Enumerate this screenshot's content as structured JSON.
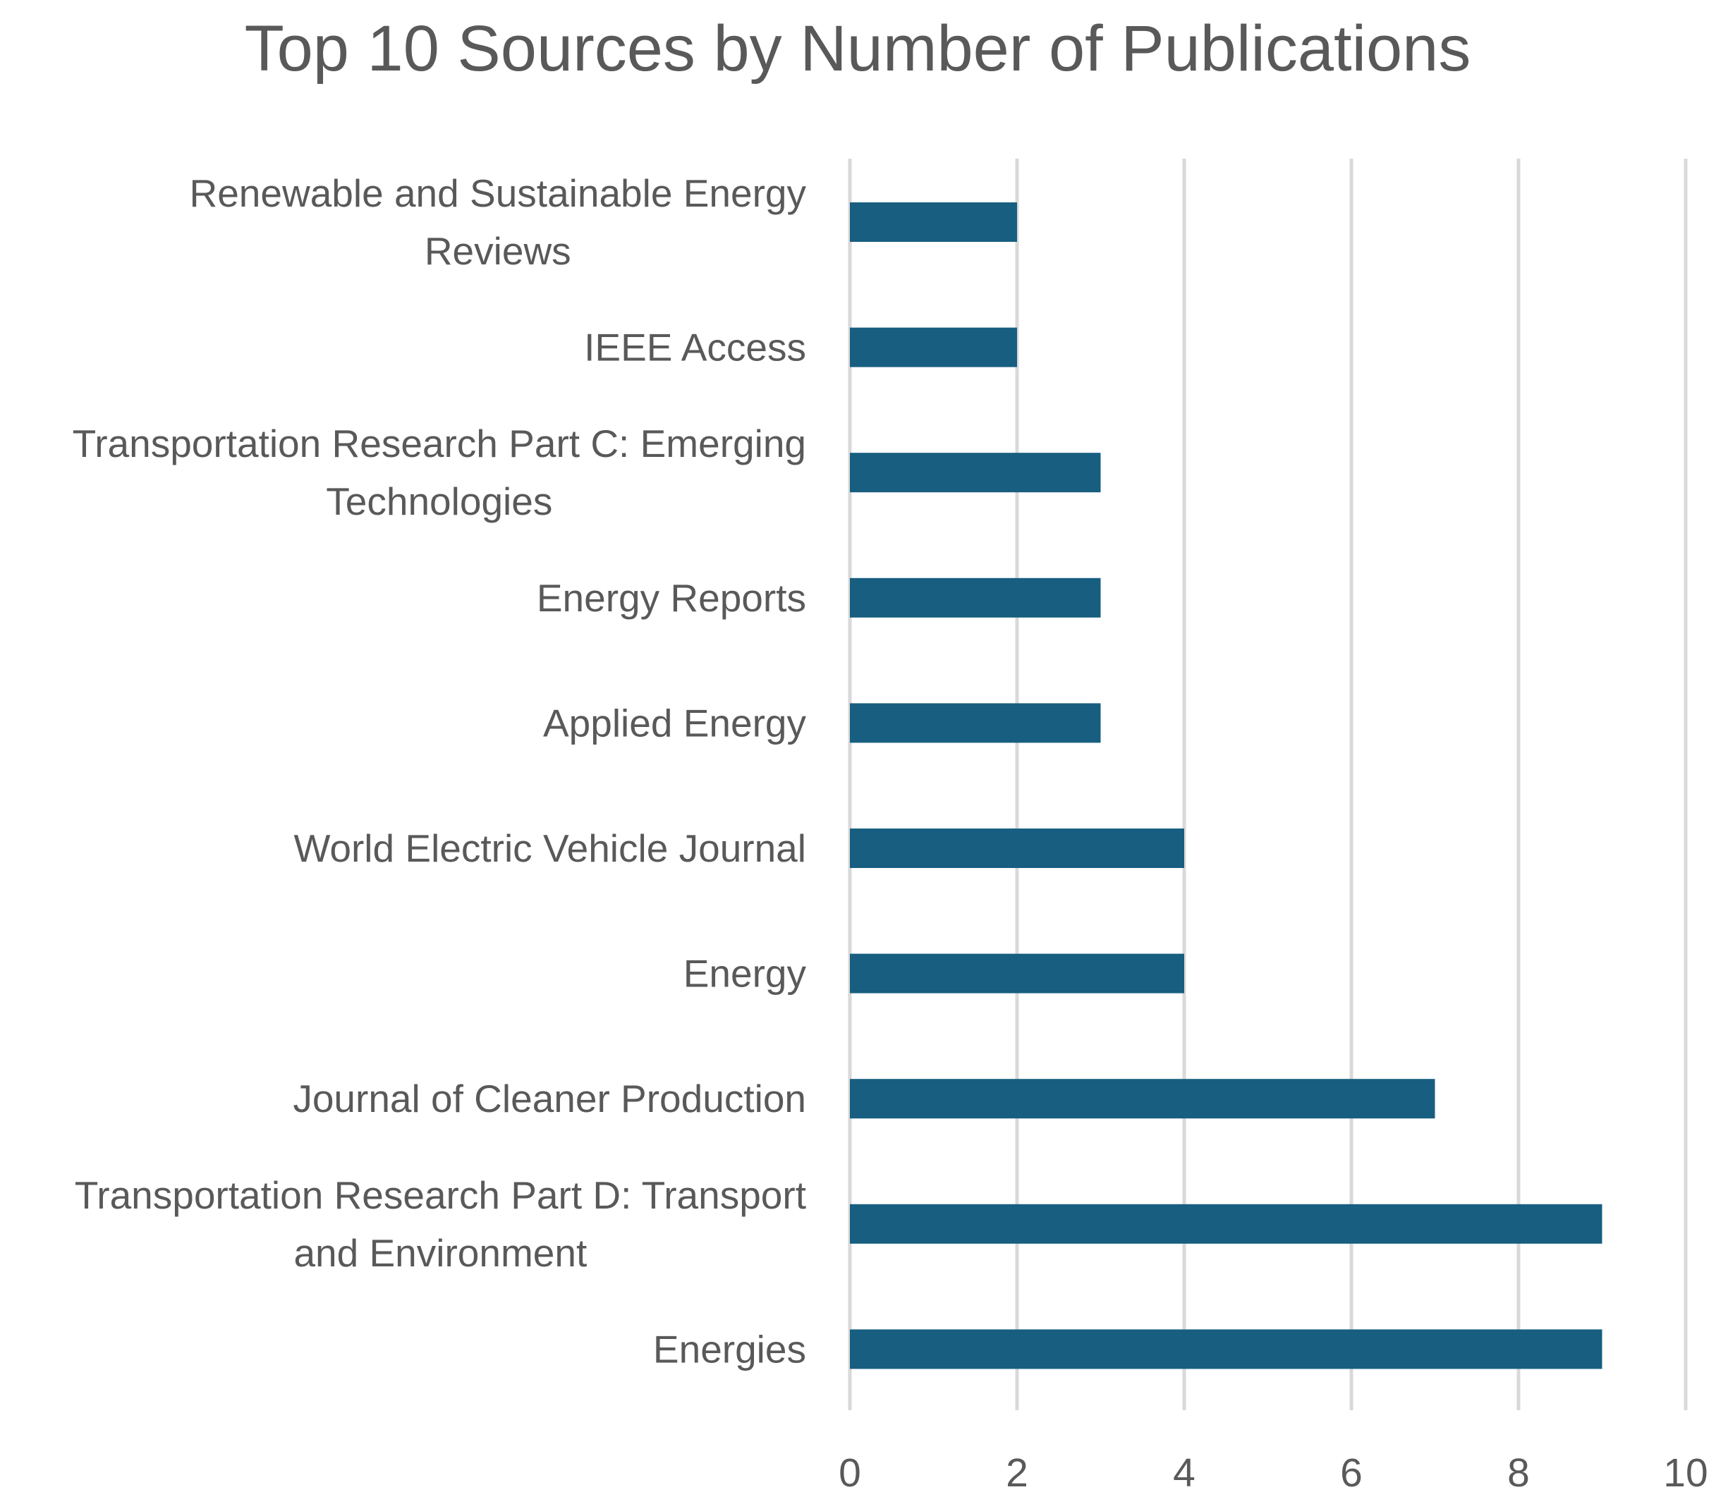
{
  "chart_data": {
    "type": "bar",
    "orientation": "horizontal",
    "title": "Top 10 Sources by Number of Publications",
    "xlabel": "",
    "ylabel": "",
    "categories": [
      "Renewable and Sustainable Energy Reviews",
      "IEEE Access",
      "Transportation Research Part C: Emerging Technologies",
      "Energy Reports",
      "Applied Energy",
      "World Electric Vehicle Journal",
      "Energy",
      "Journal of Cleaner Production",
      "Transportation Research Part D: Transport and Environment",
      "Energies"
    ],
    "category_lines": [
      [
        "Renewable and Sustainable Energy",
        "Reviews"
      ],
      [
        "IEEE Access"
      ],
      [
        "Transportation Research Part C: Emerging",
        "Technologies"
      ],
      [
        "Energy Reports"
      ],
      [
        "Applied Energy"
      ],
      [
        "World Electric Vehicle Journal"
      ],
      [
        "Energy"
      ],
      [
        "Journal of Cleaner Production"
      ],
      [
        "Transportation Research Part D: Transport",
        "and Environment"
      ],
      [
        "Energies"
      ]
    ],
    "values": [
      2,
      2,
      3,
      3,
      3,
      4,
      4,
      7,
      9,
      9
    ],
    "xlim": [
      0,
      10
    ],
    "xticks": [
      "0",
      "2",
      "4",
      "6",
      "8",
      "10"
    ],
    "grid": true,
    "legend": "none",
    "colors": {
      "bar": "#175E80",
      "grid": "#D9D9D9",
      "text": "#595959"
    }
  }
}
